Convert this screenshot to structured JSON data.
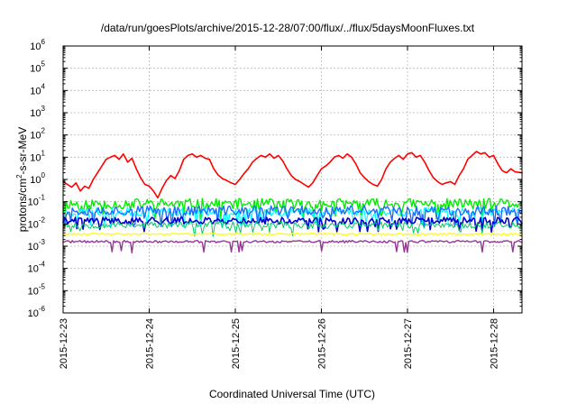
{
  "chart_data": {
    "type": "line",
    "title": "/data/run/goesPlots/archive/2015-12-28/07:00/flux/../flux/5daysMoonFluxes.txt",
    "xlabel": "Coordinated Universal Time (UTC)",
    "ylabel": {
      "base": "protons/cm",
      "sup": "2",
      "rest": "-s-sr-MeV"
    },
    "yscale": "log",
    "ylim_exp": [
      -6,
      6
    ],
    "ytick_exponents": [
      -6,
      -5,
      -4,
      -3,
      -2,
      -1,
      0,
      1,
      2,
      3,
      4,
      5,
      6
    ],
    "ytick_base": "10",
    "xlim_days": [
      0,
      5.33
    ],
    "x_ticks": [
      {
        "day": 0,
        "label": "2015-12-23"
      },
      {
        "day": 1,
        "label": "2015-12-24"
      },
      {
        "day": 2,
        "label": "2015-12-25"
      },
      {
        "day": 3,
        "label": "2015-12-26"
      },
      {
        "day": 4,
        "label": "2015-12-27"
      },
      {
        "day": 5,
        "label": "2015-12-28"
      }
    ],
    "grid": true,
    "series": [
      {
        "color": "#ff0000",
        "width": 1.6,
        "x": [
          0,
          0.05,
          0.1,
          0.15,
          0.2,
          0.25,
          0.3,
          0.35,
          0.4,
          0.45,
          0.5,
          0.55,
          0.6,
          0.65,
          0.7,
          0.75,
          0.8,
          0.85,
          0.9,
          0.95,
          1.0,
          1.05,
          1.1,
          1.15,
          1.2,
          1.25,
          1.3,
          1.35,
          1.4,
          1.45,
          1.5,
          1.55,
          1.6,
          1.65,
          1.7,
          1.75,
          1.8,
          1.85,
          1.9,
          1.95,
          2.0,
          2.05,
          2.1,
          2.15,
          2.2,
          2.25,
          2.3,
          2.35,
          2.4,
          2.45,
          2.5,
          2.55,
          2.6,
          2.65,
          2.7,
          2.75,
          2.8,
          2.85,
          2.9,
          2.95,
          3.0,
          3.05,
          3.1,
          3.15,
          3.2,
          3.25,
          3.3,
          3.35,
          3.4,
          3.45,
          3.5,
          3.55,
          3.6,
          3.65,
          3.7,
          3.75,
          3.8,
          3.85,
          3.9,
          3.95,
          4.0,
          4.05,
          4.1,
          4.15,
          4.2,
          4.25,
          4.3,
          4.35,
          4.4,
          4.45,
          4.5,
          4.55,
          4.6,
          4.65,
          4.7,
          4.75,
          4.8,
          4.85,
          4.9,
          4.95,
          5.0,
          5.05,
          5.1,
          5.15,
          5.2,
          5.25,
          5.33
        ],
        "y": [
          0.8,
          0.6,
          0.45,
          0.7,
          0.3,
          0.5,
          0.4,
          1.0,
          2.0,
          4.0,
          8.0,
          10.0,
          12.0,
          8.0,
          14.0,
          6.0,
          9.0,
          3.0,
          1.2,
          0.6,
          0.5,
          0.3,
          0.15,
          0.4,
          0.9,
          1.5,
          1.1,
          2.5,
          8.0,
          12.0,
          14.0,
          10.0,
          12.0,
          9.0,
          8.0,
          3.0,
          1.6,
          1.1,
          0.9,
          0.7,
          0.6,
          1.0,
          1.8,
          3.0,
          6.0,
          9.0,
          12.0,
          10.0,
          14.0,
          9.0,
          12.0,
          7.0,
          3.0,
          1.5,
          1.0,
          0.8,
          0.6,
          0.45,
          0.7,
          1.5,
          3.0,
          4.0,
          6.0,
          10.0,
          12.0,
          9.0,
          14.0,
          10.0,
          5.0,
          2.0,
          1.2,
          0.8,
          0.6,
          0.5,
          1.0,
          3.0,
          6.0,
          9.0,
          12.0,
          8.0,
          14.0,
          16.0,
          10.0,
          12.0,
          6.0,
          2.5,
          1.2,
          0.8,
          0.6,
          0.7,
          0.8,
          0.6,
          1.5,
          3.0,
          8.0,
          12.0,
          18.0,
          14.0,
          16.0,
          10.0,
          12.0,
          5.0,
          2.5,
          2.0,
          3.0,
          2.2,
          2.0
        ]
      },
      {
        "color": "#00ee00",
        "width": 1.4,
        "base": 0.08,
        "noise": 0.55,
        "dip_p": 0.08,
        "dip": 0.35,
        "seed": 11
      },
      {
        "color": "#00ffff",
        "width": 1.2,
        "base": 0.035,
        "noise": 0.45,
        "dip_p": 0.08,
        "dip": 0.3,
        "seed": 23
      },
      {
        "color": "#1e6cff",
        "width": 1.4,
        "base": 0.04,
        "noise": 0.5,
        "dip_p": 0.1,
        "dip": 0.3,
        "seed": 37
      },
      {
        "color": "#0000cc",
        "width": 1.6,
        "base": 0.014,
        "noise": 0.35,
        "dip_p": 0.08,
        "dip": 0.4,
        "seed": 41
      },
      {
        "color": "#00cc66",
        "width": 1.0,
        "base": 0.009,
        "noise": 0.35,
        "dip_p": 0.08,
        "dip": 0.4,
        "seed": 53
      },
      {
        "color": "#ffff00",
        "width": 1.4,
        "base": 0.0035,
        "noise": 0.08,
        "dip_p": 0.0,
        "dip": 1.0,
        "seed": 61
      },
      {
        "color": "#993399",
        "width": 1.4,
        "base": 0.0016,
        "noise": 0.12,
        "dip_p": 0.03,
        "dip": 0.35,
        "seed": 71
      }
    ]
  }
}
